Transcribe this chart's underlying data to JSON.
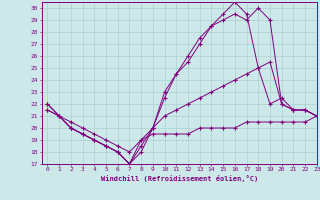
{
  "xlabel": "Windchill (Refroidissement éolien,°C)",
  "bg_color": "#cde8e8",
  "line_color": "#800080",
  "xlim": [
    -0.5,
    23
  ],
  "ylim": [
    17,
    30.5
  ],
  "xticks": [
    0,
    1,
    2,
    3,
    4,
    5,
    6,
    7,
    8,
    9,
    10,
    11,
    12,
    13,
    14,
    15,
    16,
    17,
    18,
    19,
    20,
    21,
    22,
    23
  ],
  "yticks": [
    17,
    18,
    19,
    20,
    21,
    22,
    23,
    24,
    25,
    26,
    27,
    28,
    29,
    30
  ],
  "grid_color": "#aad0d0",
  "series": [
    {
      "x": [
        0,
        1,
        2,
        3,
        4,
        5,
        6,
        7,
        8,
        9,
        10,
        11,
        12,
        13,
        14,
        15,
        16,
        17,
        18,
        19,
        20,
        21,
        22,
        23
      ],
      "y": [
        21.5,
        21.0,
        20.0,
        19.5,
        19.0,
        18.5,
        18.0,
        17.0,
        19.0,
        19.5,
        19.5,
        19.5,
        19.5,
        20.0,
        20.0,
        20.0,
        20.0,
        20.5,
        20.5,
        20.5,
        20.5,
        20.5,
        20.5,
        21.0
      ]
    },
    {
      "x": [
        0,
        1,
        2,
        3,
        4,
        5,
        6,
        7,
        8,
        9,
        10,
        11,
        12,
        13,
        14,
        15,
        16,
        17,
        18,
        19,
        20,
        21,
        22,
        23
      ],
      "y": [
        21.5,
        21.0,
        20.5,
        20.0,
        19.5,
        19.0,
        18.5,
        18.0,
        19.0,
        20.0,
        21.0,
        21.5,
        22.0,
        22.5,
        23.0,
        23.5,
        24.0,
        24.5,
        25.0,
        25.5,
        22.0,
        21.5,
        21.5,
        21.0
      ]
    },
    {
      "x": [
        0,
        1,
        2,
        3,
        4,
        5,
        6,
        7,
        8,
        9,
        10,
        11,
        12,
        13,
        14,
        15,
        16,
        17,
        18,
        19,
        20,
        21,
        22,
        23
      ],
      "y": [
        22.0,
        21.0,
        20.0,
        19.5,
        19.0,
        18.5,
        18.0,
        17.0,
        18.5,
        20.0,
        22.5,
        24.5,
        25.5,
        27.0,
        28.5,
        29.0,
        29.5,
        29.0,
        30.0,
        29.0,
        22.0,
        21.5,
        21.5,
        21.0
      ]
    },
    {
      "x": [
        0,
        1,
        2,
        3,
        4,
        5,
        6,
        7,
        8,
        9,
        10,
        11,
        12,
        13,
        14,
        15,
        16,
        17,
        18,
        19,
        20,
        21,
        22,
        23
      ],
      "y": [
        22.0,
        21.0,
        20.0,
        19.5,
        19.0,
        18.5,
        18.0,
        17.0,
        18.0,
        20.0,
        23.0,
        24.5,
        26.0,
        27.5,
        28.5,
        29.5,
        30.5,
        29.5,
        25.0,
        22.0,
        22.5,
        21.5,
        21.5,
        21.0
      ]
    }
  ]
}
